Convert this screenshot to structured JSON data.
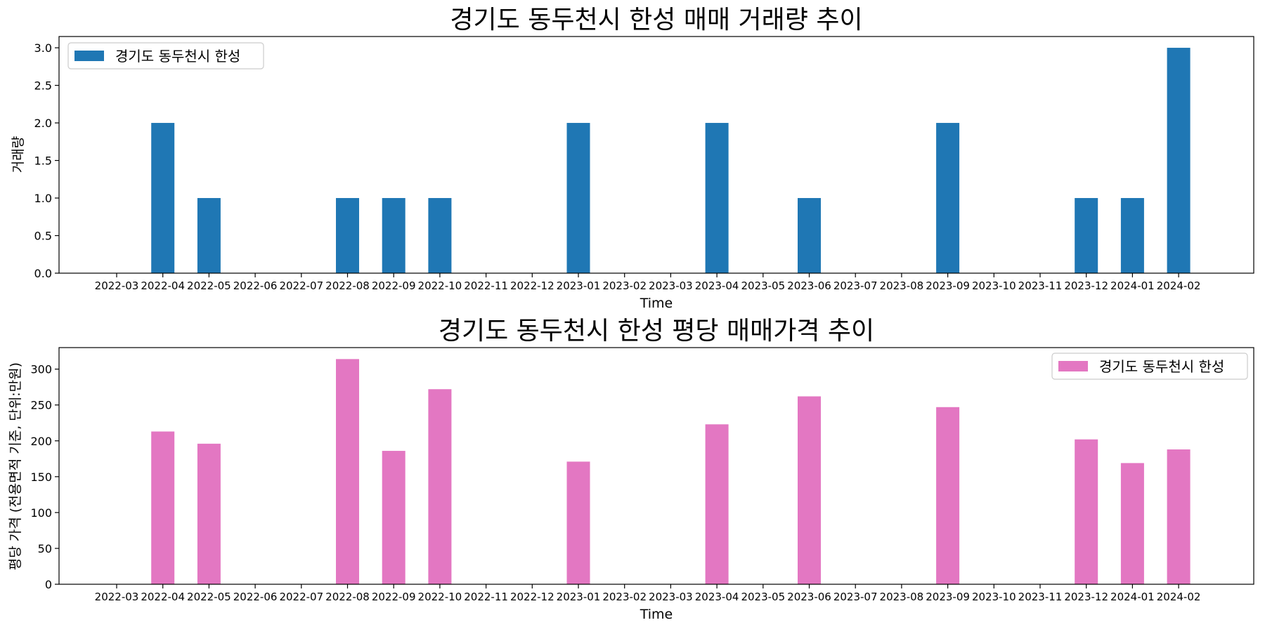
{
  "chart_data": [
    {
      "type": "bar",
      "title": "경기도 동두천시 한성 매매 거래량 추이",
      "xlabel": "Time",
      "ylabel": "거래량",
      "categories": [
        "2022-03",
        "2022-04",
        "2022-05",
        "2022-06",
        "2022-07",
        "2022-08",
        "2022-09",
        "2022-10",
        "2022-11",
        "2022-12",
        "2023-01",
        "2023-02",
        "2023-03",
        "2023-04",
        "2023-05",
        "2023-06",
        "2023-07",
        "2023-08",
        "2023-09",
        "2023-10",
        "2023-11",
        "2023-12",
        "2024-01",
        "2024-02"
      ],
      "series": [
        {
          "name": "경기도 동두천시 한성",
          "color": "#1f77b4",
          "values": [
            0,
            2,
            1,
            0,
            0,
            1,
            1,
            1,
            0,
            0,
            2,
            0,
            0,
            2,
            0,
            1,
            0,
            0,
            2,
            0,
            0,
            1,
            1,
            3
          ]
        }
      ],
      "ylim": [
        0,
        3.15
      ],
      "yticks": [
        0.0,
        0.5,
        1.0,
        1.5,
        2.0,
        2.5,
        3.0
      ],
      "ytick_labels": [
        "0.0",
        "0.5",
        "1.0",
        "1.5",
        "2.0",
        "2.5",
        "3.0"
      ],
      "grid": false,
      "legend_position": "top-left"
    },
    {
      "type": "bar",
      "title": "경기도 동두천시 한성 평당 매매가격 추이",
      "xlabel": "Time",
      "ylabel": "평당 가격 (전용면적 기준, 단위:만원)",
      "categories": [
        "2022-03",
        "2022-04",
        "2022-05",
        "2022-06",
        "2022-07",
        "2022-08",
        "2022-09",
        "2022-10",
        "2022-11",
        "2022-12",
        "2023-01",
        "2023-02",
        "2023-03",
        "2023-04",
        "2023-05",
        "2023-06",
        "2023-07",
        "2023-08",
        "2023-09",
        "2023-10",
        "2023-11",
        "2023-12",
        "2024-01",
        "2024-02"
      ],
      "series": [
        {
          "name": "경기도 동두천시 한성",
          "color": "#e377c2",
          "values": [
            0,
            213,
            196,
            0,
            0,
            314,
            186,
            272,
            0,
            0,
            171,
            0,
            0,
            223,
            0,
            262,
            0,
            0,
            247,
            0,
            0,
            202,
            169,
            188
          ]
        }
      ],
      "ylim": [
        0,
        330
      ],
      "yticks": [
        0,
        50,
        100,
        150,
        200,
        250,
        300
      ],
      "ytick_labels": [
        "0",
        "50",
        "100",
        "150",
        "200",
        "250",
        "300"
      ],
      "grid": false,
      "legend_position": "top-right"
    }
  ]
}
